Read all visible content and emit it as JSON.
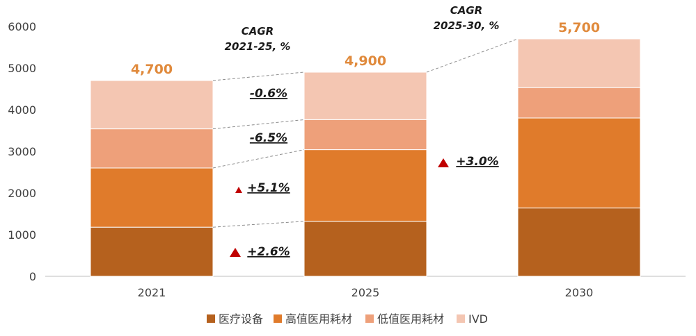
{
  "chart_data": {
    "type": "bar",
    "stacked": true,
    "categories": [
      "2021",
      "2025",
      "2030"
    ],
    "ylim": [
      0,
      6000
    ],
    "yticks": [
      0,
      1000,
      2000,
      3000,
      4000,
      5000,
      6000
    ],
    "series": [
      {
        "name": "医疗设备",
        "color": "#b5611e",
        "values": [
          1180,
          1320,
          1640
        ]
      },
      {
        "name": "高值医用耗材",
        "color": "#e07b2b",
        "values": [
          1420,
          1720,
          2160
        ]
      },
      {
        "name": "低值医用耗材",
        "color": "#eea07a",
        "values": [
          940,
          720,
          730
        ]
      },
      {
        "name": "IVD",
        "color": "#f4c6b2",
        "values": [
          1160,
          1140,
          1170
        ]
      }
    ],
    "totals": [
      "4,700",
      "4,900",
      "5,700"
    ],
    "legend_position": "bottom",
    "annotations": {
      "cagr_2021_25": {
        "title_line1": "CAGR",
        "title_line2": "2021-25, %",
        "values": [
          "-0.6%",
          "-6.5%",
          "+5.1%",
          "+2.6%"
        ],
        "up_arrow": [
          false,
          false,
          true,
          true
        ]
      },
      "cagr_2025_30": {
        "title_line1": "CAGR",
        "title_line2": "2025-30, %",
        "value": "+3.0%",
        "up_arrow": true
      }
    }
  }
}
